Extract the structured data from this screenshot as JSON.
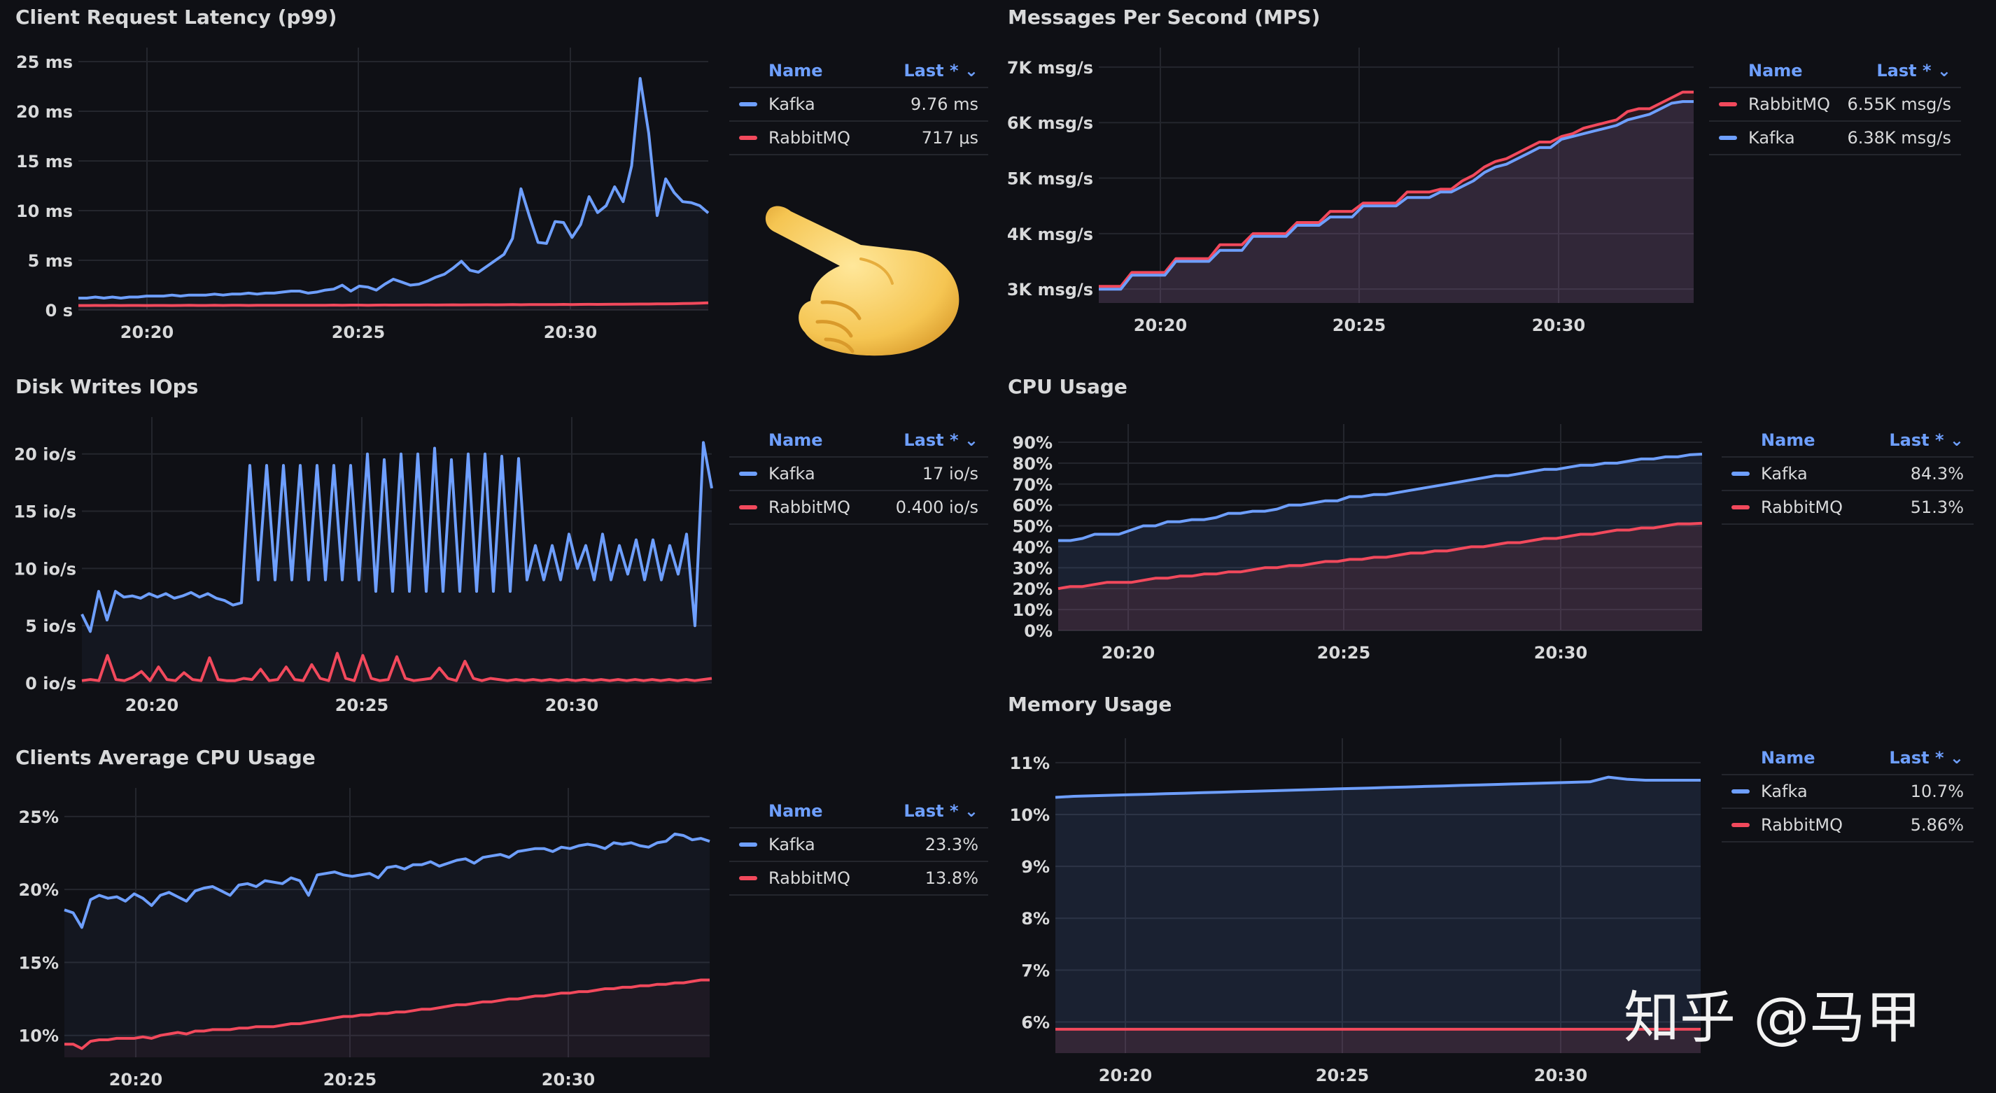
{
  "colors": {
    "kafka": "#6e9fff",
    "rabbitmq": "#f2495c",
    "grid": "#24262d",
    "axis_text": "#d8d9da"
  },
  "legend_header": {
    "name": "Name",
    "last": "Last * ⌄"
  },
  "watermark": "知乎 @马甲",
  "decoration": {
    "hand_icon": "backhand-index-pointing-right-emoji"
  },
  "panels": {
    "latency": {
      "title": "Client Request Latency (p99)",
      "legend": [
        {
          "name": "Kafka",
          "last": "9.76 ms",
          "color": "kafka"
        },
        {
          "name": "RabbitMQ",
          "last": "717 μs",
          "color": "rabbitmq"
        }
      ],
      "chart_data": {
        "type": "line",
        "x_ticks": [
          "20:20",
          "20:25",
          "20:30"
        ],
        "y_ticks": [
          "0 s",
          "5 ms",
          "10 ms",
          "15 ms",
          "20 ms",
          "25 ms"
        ],
        "ylim": [
          0,
          25
        ],
        "series": [
          {
            "name": "Kafka",
            "values": [
              1.2,
              1.2,
              1.3,
              1.2,
              1.3,
              1.2,
              1.3,
              1.3,
              1.4,
              1.4,
              1.4,
              1.5,
              1.4,
              1.5,
              1.5,
              1.5,
              1.6,
              1.5,
              1.6,
              1.6,
              1.7,
              1.6,
              1.7,
              1.7,
              1.8,
              1.9,
              1.9,
              1.7,
              1.8,
              2.0,
              2.1,
              2.5,
              1.9,
              2.4,
              2.3,
              2.0,
              2.6,
              3.1,
              2.8,
              2.5,
              2.6,
              2.9,
              3.3,
              3.6,
              4.2,
              4.9,
              4.0,
              3.8,
              4.4,
              5.0,
              5.6,
              7.2,
              12.2,
              9.4,
              6.8,
              6.7,
              8.9,
              8.8,
              7.3,
              8.6,
              11.4,
              9.8,
              10.5,
              12.4,
              10.9,
              14.5,
              23.3,
              17.8,
              9.5,
              13.2,
              11.8,
              10.9,
              10.8,
              10.5,
              9.76
            ]
          },
          {
            "name": "RabbitMQ",
            "values": [
              0.45,
              0.45,
              0.46,
              0.45,
              0.46,
              0.45,
              0.46,
              0.46,
              0.45,
              0.46,
              0.46,
              0.45,
              0.46,
              0.47,
              0.46,
              0.46,
              0.47,
              0.46,
              0.47,
              0.47,
              0.46,
              0.47,
              0.48,
              0.47,
              0.47,
              0.48,
              0.48,
              0.47,
              0.48,
              0.48,
              0.49,
              0.48,
              0.49,
              0.49,
              0.48,
              0.49,
              0.5,
              0.49,
              0.5,
              0.5,
              0.5,
              0.51,
              0.5,
              0.51,
              0.52,
              0.51,
              0.52,
              0.52,
              0.53,
              0.52,
              0.53,
              0.54,
              0.53,
              0.54,
              0.55,
              0.54,
              0.55,
              0.56,
              0.55,
              0.56,
              0.57,
              0.56,
              0.57,
              0.58,
              0.58,
              0.59,
              0.6,
              0.6,
              0.61,
              0.62,
              0.63,
              0.65,
              0.66,
              0.69,
              0.72
            ]
          }
        ]
      }
    },
    "disk": {
      "title": "Disk Writes IOps",
      "legend": [
        {
          "name": "Kafka",
          "last": "17 io/s",
          "color": "kafka"
        },
        {
          "name": "RabbitMQ",
          "last": "0.400 io/s",
          "color": "rabbitmq"
        }
      ],
      "chart_data": {
        "type": "line",
        "x_ticks": [
          "20:20",
          "20:25",
          "20:30"
        ],
        "y_ticks": [
          "0 io/s",
          "5 io/s",
          "10 io/s",
          "15 io/s",
          "20 io/s"
        ],
        "ylim": [
          0,
          22
        ],
        "series": [
          {
            "name": "Kafka",
            "values": [
              6,
              4.5,
              8,
              5.5,
              8,
              7.5,
              7.6,
              7.4,
              7.8,
              7.5,
              7.8,
              7.4,
              7.6,
              7.9,
              7.5,
              7.8,
              7.4,
              7.2,
              6.8,
              7,
              19,
              9,
              19,
              9,
              19,
              9,
              19,
              9,
              19,
              9,
              19,
              9,
              19,
              9,
              20,
              8,
              19.5,
              8,
              20,
              8,
              20,
              8,
              20.5,
              8,
              19.5,
              8,
              20,
              8,
              20,
              8,
              19.8,
              8,
              19.6,
              9,
              12,
              9,
              12,
              9,
              13,
              10,
              12,
              9,
              13,
              9,
              12,
              9.5,
              12.5,
              9,
              12.5,
              9,
              12,
              9.5,
              13,
              5,
              21,
              17
            ]
          },
          {
            "name": "RabbitMQ",
            "values": [
              0.2,
              0.3,
              0.2,
              2.4,
              0.3,
              0.2,
              0.5,
              1,
              0.2,
              1.4,
              0.3,
              0.2,
              0.9,
              0.3,
              0.2,
              2.2,
              0.3,
              0.2,
              0.2,
              0.4,
              0.3,
              1.2,
              0.2,
              0.3,
              1.4,
              0.3,
              0.2,
              1.6,
              0.4,
              0.2,
              2.6,
              0.4,
              0.2,
              2.4,
              0.4,
              0.2,
              0.3,
              2.3,
              0.4,
              0.2,
              0.3,
              0.4,
              1.3,
              0.4,
              0.2,
              1.9,
              0.4,
              0.2,
              0.4,
              0.3,
              0.2,
              0.3,
              0.2,
              0.3,
              0.2,
              0.3,
              0.2,
              0.3,
              0.2,
              0.3,
              0.2,
              0.3,
              0.2,
              0.3,
              0.2,
              0.3,
              0.2,
              0.3,
              0.2,
              0.3,
              0.2,
              0.3,
              0.2,
              0.3,
              0.4
            ]
          }
        ]
      }
    },
    "clients_cpu": {
      "title": "Clients Average CPU Usage",
      "legend": [
        {
          "name": "Kafka",
          "last": "23.3%",
          "color": "kafka"
        },
        {
          "name": "RabbitMQ",
          "last": "13.8%",
          "color": "rabbitmq"
        }
      ],
      "chart_data": {
        "type": "line",
        "x_ticks": [
          "20:20",
          "20:25",
          "20:30"
        ],
        "y_ticks": [
          "10%",
          "15%",
          "20%",
          "25%"
        ],
        "ylim": [
          8.5,
          26
        ],
        "series": [
          {
            "name": "Kafka",
            "values": [
              18.6,
              18.4,
              17.4,
              19.3,
              19.6,
              19.4,
              19.5,
              19.2,
              19.7,
              19.4,
              18.9,
              19.6,
              19.8,
              19.5,
              19.2,
              19.9,
              20.1,
              20.2,
              19.9,
              19.6,
              20.3,
              20.4,
              20.2,
              20.6,
              20.5,
              20.4,
              20.8,
              20.6,
              19.6,
              21,
              21.1,
              21.2,
              21,
              20.9,
              21,
              21.1,
              20.8,
              21.5,
              21.6,
              21.4,
              21.7,
              21.7,
              21.9,
              21.6,
              21.8,
              22,
              22.1,
              21.8,
              22.2,
              22.3,
              22.4,
              22.2,
              22.6,
              22.7,
              22.8,
              22.8,
              22.6,
              22.9,
              22.8,
              23,
              23.1,
              23,
              22.8,
              23.2,
              23.1,
              23.2,
              23,
              22.9,
              23.2,
              23.3,
              23.8,
              23.7,
              23.4,
              23.5,
              23.3
            ]
          },
          {
            "name": "RabbitMQ",
            "values": [
              9.4,
              9.4,
              9.1,
              9.6,
              9.7,
              9.7,
              9.8,
              9.8,
              9.8,
              9.9,
              9.8,
              10,
              10.1,
              10.2,
              10.1,
              10.3,
              10.3,
              10.4,
              10.4,
              10.4,
              10.5,
              10.5,
              10.6,
              10.6,
              10.6,
              10.7,
              10.8,
              10.8,
              10.9,
              11,
              11.1,
              11.2,
              11.3,
              11.3,
              11.4,
              11.4,
              11.5,
              11.5,
              11.6,
              11.6,
              11.7,
              11.8,
              11.8,
              11.9,
              12,
              12.1,
              12.1,
              12.2,
              12.3,
              12.3,
              12.4,
              12.5,
              12.5,
              12.6,
              12.7,
              12.7,
              12.8,
              12.9,
              12.9,
              13,
              13,
              13.1,
              13.2,
              13.2,
              13.3,
              13.3,
              13.4,
              13.4,
              13.5,
              13.5,
              13.6,
              13.6,
              13.7,
              13.8,
              13.8
            ]
          }
        ]
      }
    },
    "mps": {
      "title": "Messages Per Second (MPS)",
      "legend": [
        {
          "name": "RabbitMQ",
          "last": "6.55K msg/s",
          "color": "rabbitmq"
        },
        {
          "name": "Kafka",
          "last": "6.38K msg/s",
          "color": "kafka"
        }
      ],
      "chart_data": {
        "type": "area",
        "x_ticks": [
          "20:20",
          "20:25",
          "20:30"
        ],
        "y_ticks": [
          "3K msg/s",
          "4K msg/s",
          "5K msg/s",
          "6K msg/s",
          "7K msg/s"
        ],
        "ylim": [
          2750,
          7100
        ],
        "series": [
          {
            "name": "RabbitMQ",
            "values": [
              3050,
              3050,
              3050,
              3300,
              3300,
              3300,
              3300,
              3550,
              3550,
              3550,
              3550,
              3800,
              3800,
              3800,
              4000,
              4000,
              4000,
              4000,
              4200,
              4200,
              4200,
              4400,
              4400,
              4400,
              4550,
              4550,
              4550,
              4550,
              4750,
              4750,
              4750,
              4800,
              4800,
              4950,
              5050,
              5200,
              5300,
              5350,
              5450,
              5550,
              5650,
              5650,
              5750,
              5800,
              5900,
              5950,
              6000,
              6050,
              6200,
              6250,
              6250,
              6350,
              6450,
              6550,
              6550
            ]
          },
          {
            "name": "Kafka",
            "values": [
              3000,
              3000,
              3000,
              3250,
              3250,
              3250,
              3250,
              3500,
              3500,
              3500,
              3500,
              3700,
              3700,
              3700,
              3950,
              3950,
              3950,
              3950,
              4150,
              4150,
              4150,
              4300,
              4300,
              4300,
              4500,
              4500,
              4500,
              4500,
              4650,
              4650,
              4650,
              4750,
              4750,
              4850,
              4950,
              5100,
              5200,
              5250,
              5350,
              5450,
              5550,
              5550,
              5700,
              5750,
              5800,
              5850,
              5900,
              5950,
              6050,
              6100,
              6150,
              6250,
              6350,
              6380,
              6380
            ]
          }
        ]
      }
    },
    "cpu": {
      "title": "CPU Usage",
      "legend": [
        {
          "name": "Kafka",
          "last": "84.3%",
          "color": "kafka"
        },
        {
          "name": "RabbitMQ",
          "last": "51.3%",
          "color": "rabbitmq"
        }
      ],
      "chart_data": {
        "type": "area",
        "x_ticks": [
          "20:20",
          "20:25",
          "20:30"
        ],
        "y_ticks": [
          "0%",
          "10%",
          "20%",
          "30%",
          "40%",
          "50%",
          "60%",
          "70%",
          "80%",
          "90%"
        ],
        "ylim": [
          0,
          92
        ],
        "series": [
          {
            "name": "Kafka",
            "values": [
              43,
              43,
              44,
              46,
              46,
              46,
              48,
              50,
              50,
              52,
              52,
              53,
              53,
              54,
              56,
              56,
              57,
              57,
              58,
              60,
              60,
              61,
              62,
              62,
              64,
              64,
              65,
              65,
              66,
              67,
              68,
              69,
              70,
              71,
              72,
              73,
              74,
              74,
              75,
              76,
              77,
              77,
              78,
              79,
              79,
              80,
              80,
              81,
              82,
              82,
              83,
              83,
              84,
              84.3
            ]
          },
          {
            "name": "RabbitMQ",
            "values": [
              20,
              21,
              21,
              22,
              23,
              23,
              23,
              24,
              25,
              25,
              26,
              26,
              27,
              27,
              28,
              28,
              29,
              30,
              30,
              31,
              31,
              32,
              33,
              33,
              34,
              34,
              35,
              35,
              36,
              37,
              37,
              38,
              38,
              39,
              40,
              40,
              41,
              42,
              42,
              43,
              44,
              44,
              45,
              46,
              46,
              47,
              48,
              48,
              49,
              49,
              50,
              51,
              51,
              51.3
            ]
          }
        ]
      }
    },
    "memory": {
      "title": "Memory Usage",
      "legend": [
        {
          "name": "Kafka",
          "last": "10.7%",
          "color": "kafka"
        },
        {
          "name": "RabbitMQ",
          "last": "5.86%",
          "color": "rabbitmq"
        }
      ],
      "chart_data": {
        "type": "area",
        "x_ticks": [
          "20:20",
          "20:25",
          "20:30"
        ],
        "y_ticks": [
          "6%",
          "7%",
          "8%",
          "9%",
          "10%",
          "11%"
        ],
        "ylim": [
          5.4,
          11.2
        ],
        "series": [
          {
            "name": "Kafka",
            "values": [
              10.33,
              10.35,
              10.36,
              10.37,
              10.38,
              10.39,
              10.4,
              10.41,
              10.42,
              10.43,
              10.44,
              10.45,
              10.46,
              10.47,
              10.48,
              10.49,
              10.5,
              10.51,
              10.52,
              10.53,
              10.54,
              10.55,
              10.56,
              10.57,
              10.58,
              10.59,
              10.6,
              10.61,
              10.62,
              10.63,
              10.72,
              10.68,
              10.66,
              10.66,
              10.66,
              10.66
            ]
          },
          {
            "name": "RabbitMQ",
            "values": [
              5.86,
              5.86,
              5.86,
              5.86,
              5.86,
              5.86,
              5.86,
              5.86,
              5.86,
              5.86,
              5.86,
              5.86,
              5.86,
              5.86,
              5.86,
              5.86,
              5.86,
              5.86,
              5.86,
              5.86,
              5.86,
              5.86,
              5.86,
              5.86,
              5.86,
              5.86,
              5.86,
              5.86,
              5.86,
              5.86,
              5.86,
              5.86,
              5.86,
              5.86,
              5.86,
              5.86
            ]
          }
        ]
      }
    }
  }
}
